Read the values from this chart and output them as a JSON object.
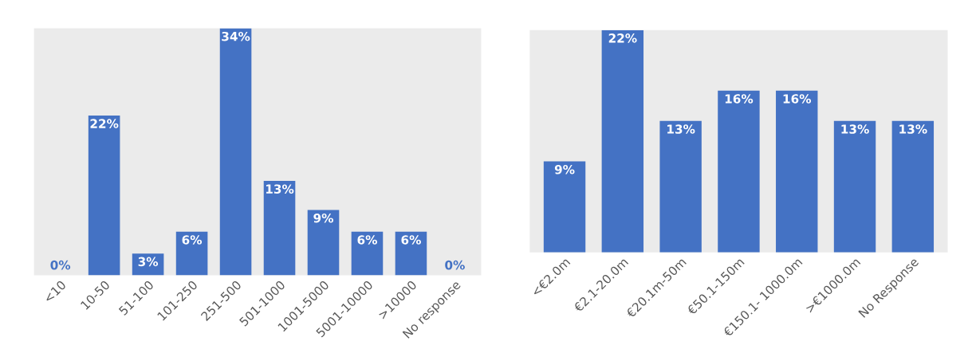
{
  "chart_data": [
    {
      "type": "bar",
      "categories": [
        "<10",
        "10-50",
        "51-100",
        "101-250",
        "251-500",
        "501-1000",
        "1001-5000",
        "5001-10000",
        ">10000",
        "No response"
      ],
      "series": [
        {
          "color": "#4472c4",
          "values": [
            0,
            22,
            3,
            6,
            34,
            13,
            9,
            6,
            6,
            0
          ],
          "value_labels": [
            "0%",
            "22%",
            "3%",
            "6%",
            "34%",
            "13%",
            "9%",
            "6%",
            "6%",
            "0%"
          ]
        }
      ],
      "grid": false,
      "legend": false,
      "tick_labels": "x"
    },
    {
      "type": "bar",
      "categories": [
        "<€2.0m",
        "€2.1-20.0m",
        "€20.1m-50m",
        "€50.1-150m",
        "€150.1- 1000.0m",
        ">€1000.0m",
        "No Response"
      ],
      "series": [
        {
          "color": "#4472c4",
          "values": [
            9,
            22,
            13,
            16,
            16,
            13,
            13
          ],
          "value_labels": [
            "9%",
            "22%",
            "13%",
            "16%",
            "16%",
            "13%",
            "13%"
          ]
        }
      ],
      "grid": false,
      "legend": false,
      "tick_labels": "x"
    }
  ]
}
